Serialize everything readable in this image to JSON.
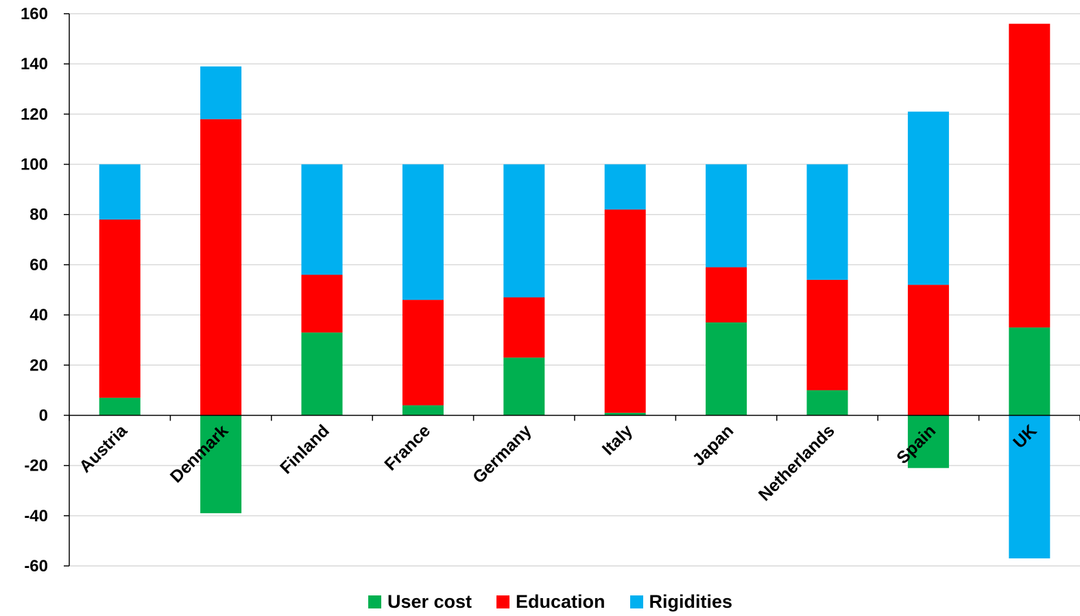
{
  "chart_data": {
    "type": "bar",
    "stacked": true,
    "categories": [
      "Austria",
      "Denmark",
      "Finland",
      "France",
      "Germany",
      "Italy",
      "Japan",
      "Netherlands",
      "Spain",
      "UK"
    ],
    "series": [
      {
        "name": "User cost",
        "color": "#00b050",
        "values": [
          7,
          -39,
          33,
          4,
          23,
          1,
          37,
          10,
          -21,
          35
        ]
      },
      {
        "name": "Education",
        "color": "#ff0000",
        "values": [
          71,
          118,
          23,
          42,
          24,
          81,
          22,
          44,
          52,
          121
        ]
      },
      {
        "name": "Rigidities",
        "color": "#00b0f0",
        "values": [
          22,
          21,
          44,
          54,
          53,
          18,
          41,
          46,
          69,
          -57
        ]
      }
    ],
    "y_ticks": [
      "160",
      "140",
      "120",
      "100",
      "80",
      "60",
      "40",
      "20",
      "0",
      "-20",
      "-40",
      "-60"
    ],
    "ylim": [
      -60,
      160
    ],
    "grid": true,
    "legend_position": "bottom",
    "title": "",
    "xlabel": "",
    "ylabel": ""
  }
}
